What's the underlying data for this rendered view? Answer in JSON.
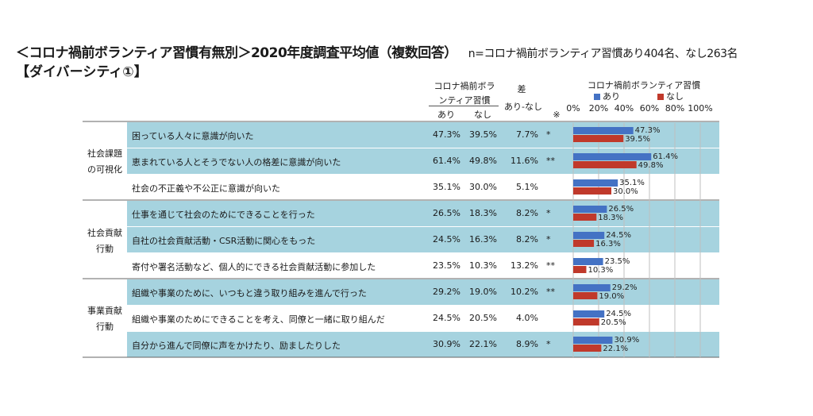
{
  "title": "＜コロナ禍前ボランティア習慣有無別＞2020年度調査平均値（複数回答）",
  "note": "n=コロナ禍前ボランティア習慣あり404名、なし263名",
  "subtitle": "【ダイバーシティ①】",
  "headers": {
    "habit_line1": "コロナ禍前ボラ",
    "habit_line2": "ンティア習慣",
    "ari": "あり",
    "nashi": "なし",
    "diff_line1": "差",
    "diff_line2": "あり-なし",
    "sig_mark": "※",
    "chart_title": "コロナ禍前ボランティア習慣"
  },
  "groups": [
    {
      "line1": "社会課題",
      "line2": "の可視化"
    },
    {
      "line1": "社会貢献",
      "line2": "行動"
    },
    {
      "line1": "事業貢献",
      "line2": "行動"
    }
  ],
  "chart_data": {
    "type": "bar",
    "orientation": "horizontal",
    "title": "コロナ禍前ボランティア習慣",
    "xlim": [
      0,
      100
    ],
    "xticks": [
      "0%",
      "20%",
      "40%",
      "60%",
      "80%",
      "100%"
    ],
    "legend_position": "top",
    "series": [
      {
        "name": "あり",
        "color": "#4472c4",
        "values": [
          47.3,
          61.4,
          35.1,
          26.5,
          24.5,
          23.5,
          29.2,
          24.5,
          30.9
        ]
      },
      {
        "name": "なし",
        "color": "#c0392b",
        "values": [
          39.5,
          49.8,
          30.0,
          18.3,
          16.3,
          10.3,
          19.0,
          20.5,
          22.1
        ]
      }
    ],
    "categories": [
      "困っている人々に意識が向いた",
      "恵まれている人とそうでない人の格差に意識が向いた",
      "社会の不正義や不公正に意識が向いた",
      "仕事を通じて社会のためにできることを行った",
      "自社の社会貢献活動・CSR活動に関心をもった",
      "寄付や署名活動など、個人的にできる社会貢献活動に参加した",
      "組織や事業のために、いつもと違う取り組みを進んで行った",
      "組織や事業のためにできることを考え、同僚と一緒に取り組んだ",
      "自分から進んで同僚に声をかけたり、励ましたりした"
    ],
    "ari_labels": [
      "47.3%",
      "61.4%",
      "35.1%",
      "26.5%",
      "24.5%",
      "23.5%",
      "29.2%",
      "24.5%",
      "30.9%"
    ],
    "nashi_labels": [
      "39.5%",
      "49.8%",
      "30.0%",
      "18.3%",
      "16.3%",
      "10.3%",
      "19.0%",
      "20.5%",
      "22.1%"
    ],
    "diff_labels": [
      "7.7%",
      "11.6%",
      "5.1%",
      "8.2%",
      "8.2%",
      "13.2%",
      "10.2%",
      "4.0%",
      "8.9%"
    ],
    "significance": [
      "*",
      "**",
      "",
      "*",
      "*",
      "**",
      "**",
      "",
      "*"
    ],
    "shaded": [
      true,
      true,
      false,
      true,
      true,
      false,
      true,
      false,
      true
    ]
  }
}
